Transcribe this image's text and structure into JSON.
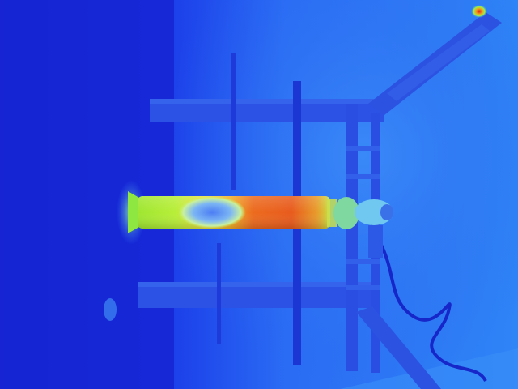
{
  "image": {
    "kind": "thermal-infrared-photo",
    "palette": [
      "#1020d8",
      "#1a40f0",
      "#2a70f8",
      "#40a0f8",
      "#70d0f0",
      "#c8f040",
      "#f0c020",
      "#f06020",
      "#e02010"
    ],
    "background_color": "#1a2fe0",
    "hot_color": "#e85020",
    "warm_color": "#9ee630",
    "cool_color": "#3a74f0"
  }
}
